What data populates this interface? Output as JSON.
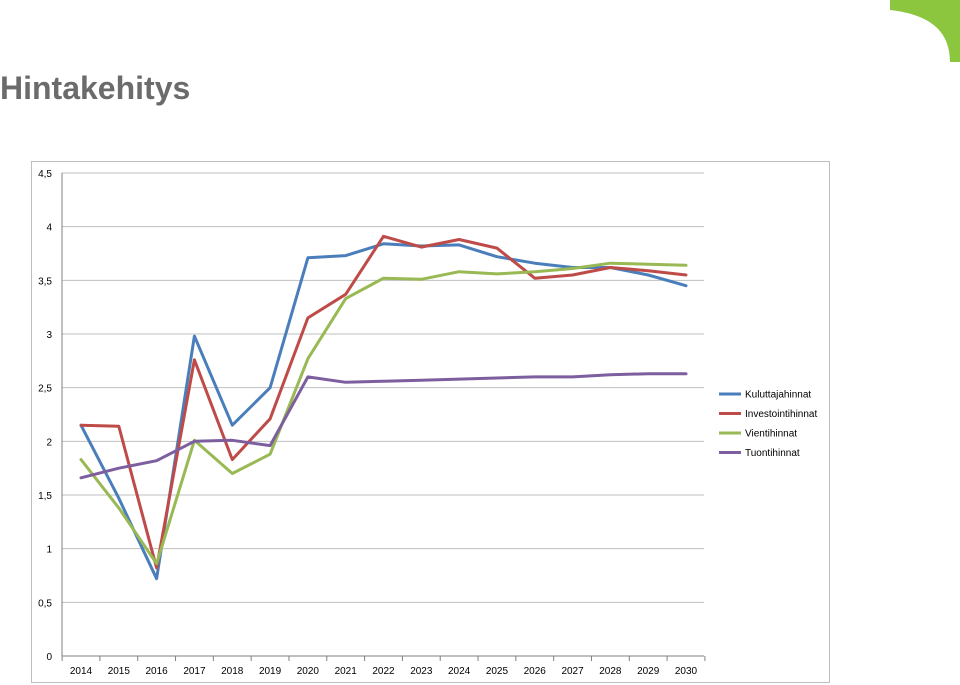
{
  "page": {
    "title": "Hintakehitys"
  },
  "colors": {
    "brand_accent": "#8cc63f",
    "title_text": "#6b6b6b",
    "grid": "#bfbfbf"
  },
  "chart_data": {
    "type": "line",
    "title": "",
    "xlabel": "",
    "ylabel": "",
    "ylim": [
      0,
      4.5
    ],
    "yticks": [
      "0",
      "0,5",
      "1",
      "1,5",
      "2",
      "2,5",
      "3",
      "3,5",
      "4",
      "4,5"
    ],
    "ytick_values": [
      0,
      0.5,
      1,
      1.5,
      2,
      2.5,
      3,
      3.5,
      4,
      4.5
    ],
    "grid": true,
    "legend_position": "right",
    "categories": [
      "2014",
      "2015",
      "2016",
      "2017",
      "2018",
      "2019",
      "2020",
      "2021",
      "2022",
      "2023",
      "2024",
      "2025",
      "2026",
      "2027",
      "2028",
      "2029",
      "2030"
    ],
    "series": [
      {
        "name": "Kuluttajahinnat",
        "color": "#4a7ebb",
        "values": [
          2.15,
          1.47,
          0.72,
          2.98,
          2.15,
          2.5,
          3.71,
          3.73,
          3.84,
          3.82,
          3.83,
          3.72,
          3.66,
          3.62,
          3.62,
          3.55,
          3.45
        ]
      },
      {
        "name": "Investointihinnat",
        "color": "#be4b48",
        "values": [
          2.15,
          2.14,
          0.82,
          2.76,
          1.83,
          2.21,
          3.15,
          3.37,
          3.91,
          3.81,
          3.88,
          3.8,
          3.52,
          3.55,
          3.62,
          3.59,
          3.55
        ]
      },
      {
        "name": "Vientihinnat",
        "color": "#98b954",
        "values": [
          1.83,
          1.38,
          0.86,
          2.01,
          1.7,
          1.88,
          2.77,
          3.33,
          3.52,
          3.51,
          3.58,
          3.56,
          3.58,
          3.61,
          3.66,
          3.65,
          3.64
        ]
      },
      {
        "name": "Tuontihinnat",
        "color": "#7d5fa0",
        "values": [
          1.66,
          1.75,
          1.82,
          2.0,
          2.01,
          1.96,
          2.6,
          2.55,
          2.56,
          2.57,
          2.58,
          2.59,
          2.6,
          2.6,
          2.62,
          2.63,
          2.63
        ]
      }
    ]
  }
}
